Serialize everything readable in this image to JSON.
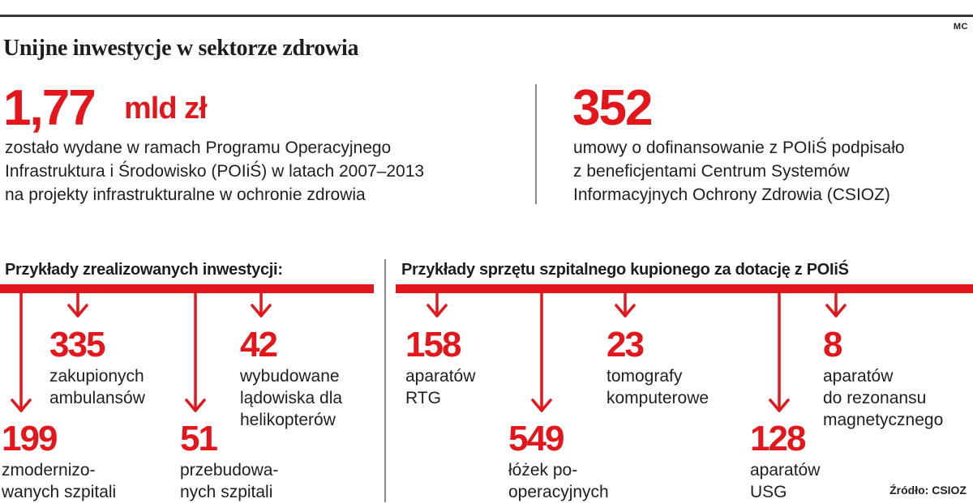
{
  "byline": "MC",
  "title": "Unijne inwestycje w sektorze zdrowia",
  "headline_left": {
    "value": "1,77",
    "unit": "mld zł",
    "lines": [
      "zostało wydane w ramach Programu Operacyjnego",
      "Infrastruktura i Środowisko (POIiŚ) w latach 2007–2013",
      "na projekty infrastrukturalne w ochronie zdrowia"
    ]
  },
  "headline_right": {
    "value": "352",
    "lines": [
      "umowy o dofinansowanie z POIiŚ podpisało",
      "z beneficjentami Centrum Systemów",
      "Informacyjnych Ochrony Zdrowia (CSIOZ)"
    ]
  },
  "investments": {
    "heading": "Przykłady zrealizowanych inwestycji:",
    "items": [
      {
        "value": "199",
        "lines": [
          "zmodernizo-",
          "wanych szpitali"
        ]
      },
      {
        "value": "335",
        "lines": [
          "zakupionych",
          "ambulansów"
        ]
      },
      {
        "value": "51",
        "lines": [
          "przebudowa-",
          "nych szpitali"
        ]
      },
      {
        "value": "42",
        "lines": [
          "wybudowane",
          "lądowiska dla",
          "helikopterów"
        ]
      }
    ]
  },
  "equipment": {
    "heading": "Przykłady sprzętu szpitalnego kupionego za dotację z POIiŚ",
    "items": [
      {
        "value": "158",
        "lines": [
          "aparatów",
          "RTG"
        ]
      },
      {
        "value": "549",
        "lines": [
          "łóżek po-",
          "operacyjnych"
        ]
      },
      {
        "value": "23",
        "lines": [
          "tomografy",
          "komputerowe"
        ]
      },
      {
        "value": "128",
        "lines": [
          "aparatów",
          "USG"
        ]
      },
      {
        "value": "8",
        "lines": [
          "aparatów",
          "do rezonansu",
          "magnetycznego"
        ]
      }
    ]
  },
  "source": "Źródło: CSIOZ",
  "colors": {
    "accent": "#e3161c",
    "text": "#1e1e1e",
    "rule": "#3a3a3a",
    "divider": "#8a8a8a"
  }
}
